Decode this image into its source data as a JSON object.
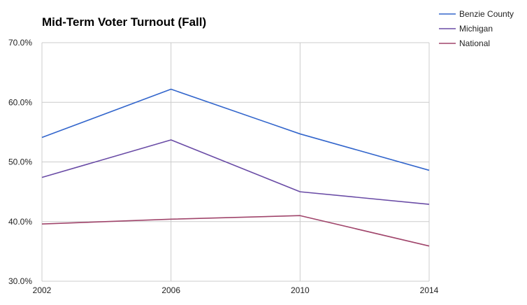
{
  "chart_data": {
    "type": "line",
    "title": "Mid-Term Voter Turnout (Fall)",
    "xlabel": "",
    "ylabel": "",
    "x": [
      "2002",
      "2006",
      "2010",
      "2014"
    ],
    "y_ticks": [
      "30.0%",
      "40.0%",
      "50.0%",
      "60.0%",
      "70.0%"
    ],
    "ylim": [
      30,
      70
    ],
    "grid": true,
    "legend_position": "right",
    "series": [
      {
        "name": "Benzie County",
        "color": "#3366cc",
        "values": [
          54.1,
          62.2,
          54.7,
          48.6
        ]
      },
      {
        "name": "Michigan",
        "color": "#6a4ca6",
        "values": [
          47.4,
          53.7,
          45.0,
          42.9
        ]
      },
      {
        "name": "National",
        "color": "#a0456b",
        "values": [
          39.6,
          40.4,
          41.0,
          35.9
        ]
      }
    ]
  }
}
